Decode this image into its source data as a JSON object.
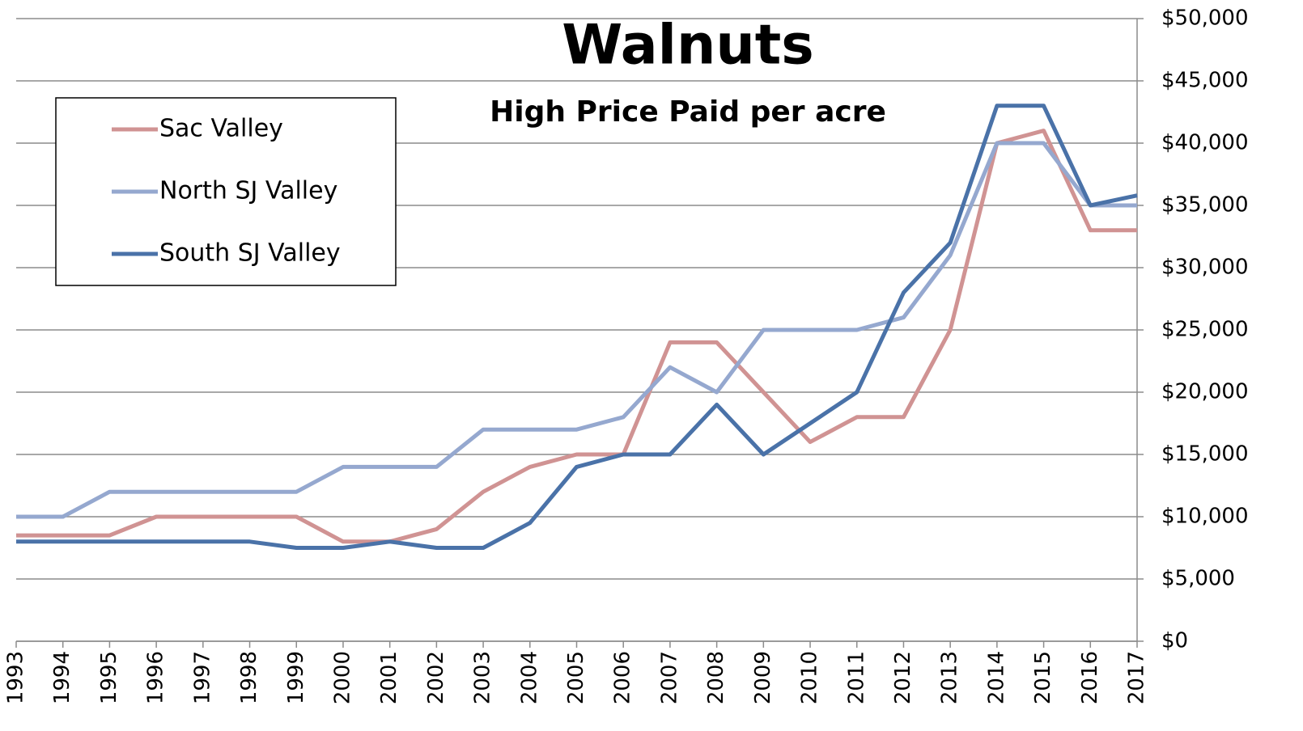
{
  "chart_data": {
    "type": "line",
    "title": "Walnuts",
    "subtitle": "High Price Paid per acre",
    "categories": [
      "1993",
      "1994",
      "1995",
      "1996",
      "1997",
      "1998",
      "1999",
      "2000",
      "2001",
      "2002",
      "2003",
      "2004",
      "2005",
      "2006",
      "2007",
      "2008",
      "2009",
      "2010",
      "2011",
      "2012",
      "2013",
      "2014",
      "2015",
      "2016",
      "2017"
    ],
    "series": [
      {
        "name": "Sac Valley",
        "color": "#d09393",
        "values": [
          8500,
          8500,
          8500,
          10000,
          10000,
          10000,
          10000,
          8000,
          8000,
          9000,
          12000,
          14000,
          15000,
          15000,
          24000,
          24000,
          20000,
          16000,
          18000,
          18000,
          25000,
          40000,
          41000,
          33000,
          33000
        ]
      },
      {
        "name": "North SJ Valley",
        "color": "#95a8cf",
        "values": [
          10000,
          10000,
          12000,
          12000,
          12000,
          12000,
          12000,
          14000,
          14000,
          14000,
          17000,
          17000,
          17000,
          18000,
          22000,
          20000,
          25000,
          25000,
          25000,
          26000,
          31000,
          40000,
          40000,
          35000,
          35000
        ]
      },
      {
        "name": "South SJ Valley",
        "color": "#4a72a8",
        "values": [
          8000,
          8000,
          8000,
          8000,
          8000,
          8000,
          7500,
          7500,
          8000,
          7500,
          7500,
          9500,
          14000,
          15000,
          15000,
          19000,
          15000,
          17500,
          20000,
          28000,
          32000,
          43000,
          43000,
          35000,
          35800
        ]
      }
    ],
    "ylim": [
      0,
      50000
    ],
    "yticks": [
      {
        "value": 0,
        "label": "$0"
      },
      {
        "value": 5000,
        "label": "$5,000"
      },
      {
        "value": 10000,
        "label": "$10,000"
      },
      {
        "value": 15000,
        "label": "$15,000"
      },
      {
        "value": 20000,
        "label": "$20,000"
      },
      {
        "value": 25000,
        "label": "$25,000"
      },
      {
        "value": 30000,
        "label": "$30,000"
      },
      {
        "value": 35000,
        "label": "$35,000"
      },
      {
        "value": 40000,
        "label": "$40,000"
      },
      {
        "value": 45000,
        "label": "$45,000"
      },
      {
        "value": 50000,
        "label": "$50,000"
      }
    ],
    "grid": true,
    "legend": "upper left"
  }
}
